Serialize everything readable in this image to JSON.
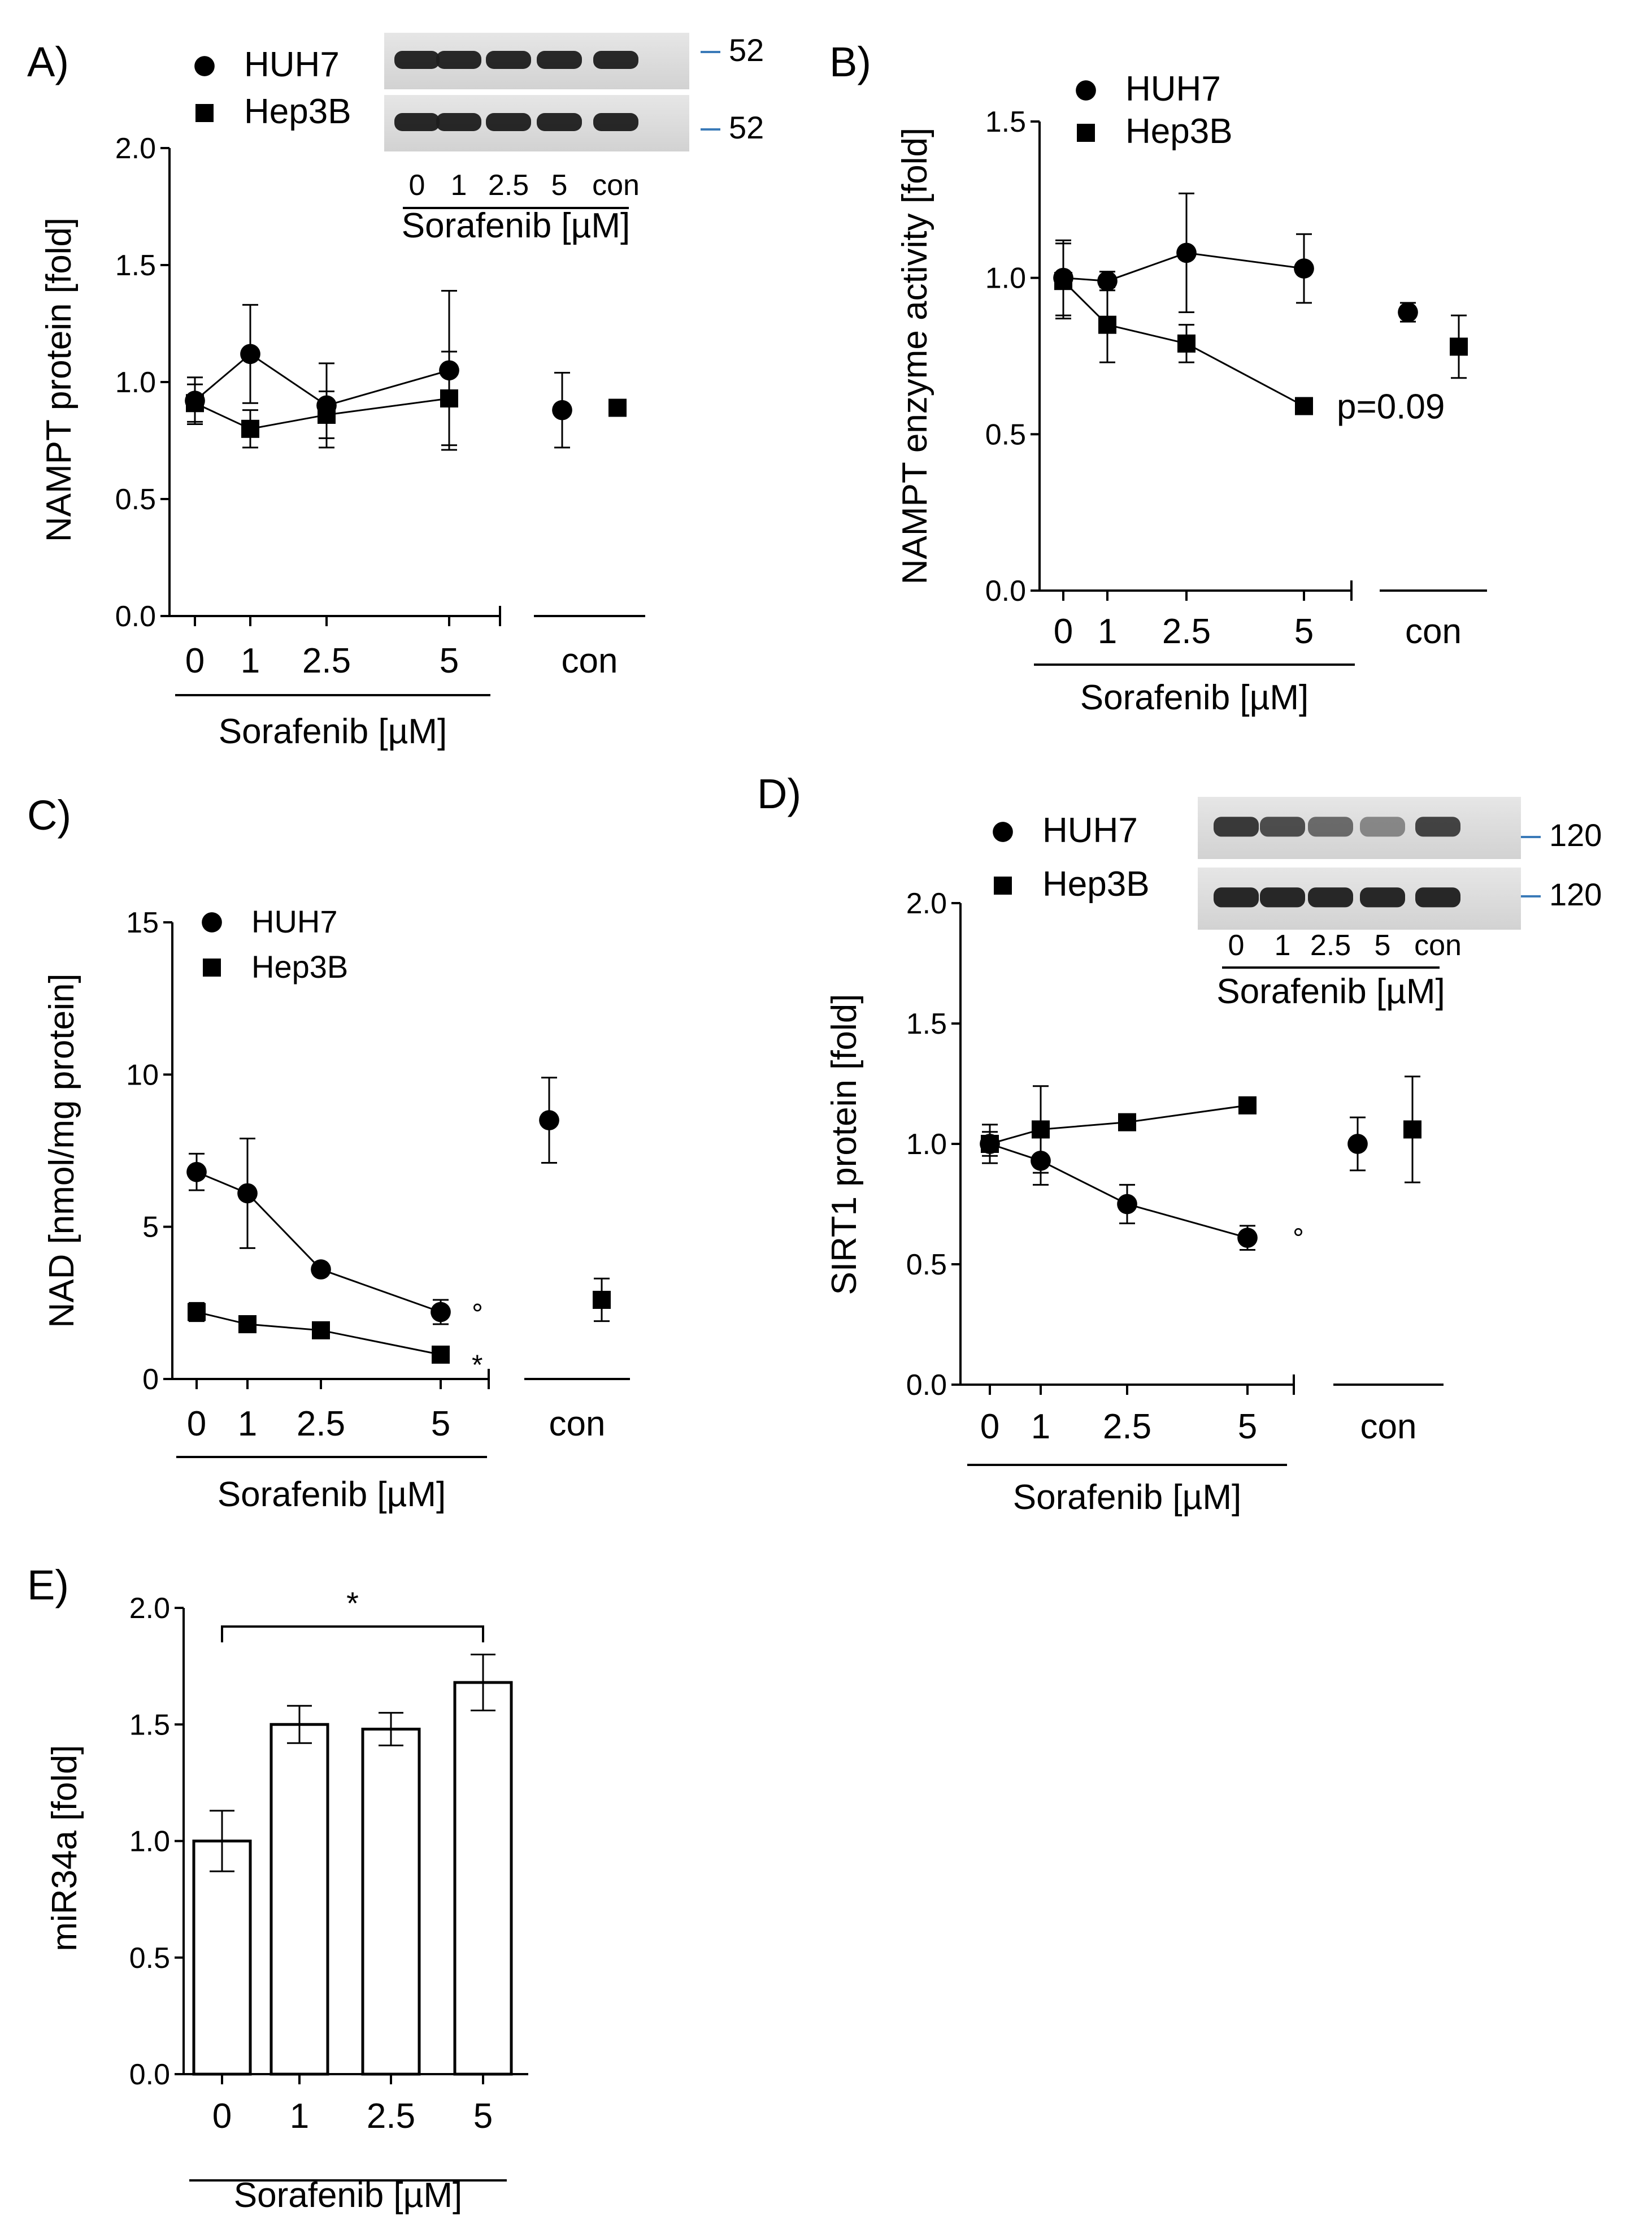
{
  "figure": {
    "x_title": "Sorafenib [µM]",
    "con_label": "con",
    "x_ticks": [
      "0",
      "1",
      "2.5",
      "5"
    ],
    "x_values": [
      0,
      1,
      2.5,
      5
    ],
    "legend": {
      "huh7": "HUH7",
      "hep3b": "Hep3B"
    }
  },
  "chart_data": [
    {
      "panel": "A)",
      "type": "line",
      "ylabel": "NAMPT protein [fold]",
      "xlabel": "Sorafenib [µM]",
      "ylim": [
        0,
        2
      ],
      "yticks": [
        "0.0",
        "0.5",
        "1.0",
        "1.5",
        "2.0"
      ],
      "series": [
        {
          "name": "HUH7",
          "marker": "circle",
          "values": [
            0.92,
            1.12,
            0.9,
            1.05
          ],
          "err": [
            0.1,
            0.21,
            0.18,
            0.34
          ],
          "con": 0.88,
          "con_err": 0.16
        },
        {
          "name": "Hep3B",
          "marker": "square",
          "values": [
            0.91,
            0.8,
            0.86,
            0.93
          ],
          "err": [
            0.08,
            0.08,
            0.1,
            0.2
          ],
          "con": 0.89,
          "con_err": 0.02
        }
      ],
      "blot": {
        "rows": 2,
        "lanes": [
          "0",
          "1",
          "2.5",
          "5",
          "con"
        ],
        "markers": [
          "52",
          "52"
        ],
        "caption": "Sorafenib [µM]"
      },
      "annotations": []
    },
    {
      "panel": "B)",
      "type": "line",
      "ylabel": "NAMPT enzyme activity [fold]",
      "xlabel": "Sorafenib [µM]",
      "ylim": [
        0,
        1.5
      ],
      "yticks": [
        "0.0",
        "0.5",
        "1.0",
        "1.5"
      ],
      "series": [
        {
          "name": "HUH7",
          "marker": "circle",
          "values": [
            1.0,
            0.99,
            1.08,
            1.03
          ],
          "err": [
            0.12,
            0.03,
            0.19,
            0.11
          ],
          "con": 0.89,
          "con_err": 0.03
        },
        {
          "name": "Hep3B",
          "marker": "square",
          "values": [
            0.99,
            0.85,
            0.79,
            0.59
          ],
          "err": [
            0.12,
            0.12,
            0.06,
            0.02
          ],
          "con": 0.78,
          "con_err": 0.1
        }
      ],
      "annotations": [
        {
          "text": "p=0.09",
          "series": "Hep3B",
          "at": 5
        }
      ]
    },
    {
      "panel": "C)",
      "type": "line",
      "ylabel": "NAD [nmol/mg protein]",
      "xlabel": "Sorafenib [µM]",
      "ylim": [
        0,
        15
      ],
      "yticks": [
        "0",
        "5",
        "10",
        "15"
      ],
      "series": [
        {
          "name": "HUH7",
          "marker": "circle",
          "values": [
            6.8,
            6.1,
            3.6,
            2.2
          ],
          "err": [
            0.6,
            1.8,
            0.1,
            0.4
          ],
          "con": 8.5,
          "con_err": 1.4
        },
        {
          "name": "Hep3B",
          "marker": "square",
          "values": [
            2.2,
            1.8,
            1.6,
            0.8
          ],
          "err": [
            0.3,
            0.1,
            0.1,
            0.05
          ],
          "con": 2.6,
          "con_err": 0.7
        }
      ],
      "annotations": [
        {
          "text": "°",
          "series": "HUH7",
          "at": 5
        },
        {
          "text": "*",
          "series": "Hep3B",
          "at": 5
        }
      ]
    },
    {
      "panel": "D)",
      "type": "line",
      "ylabel": "SIRT1 protein [fold]",
      "xlabel": "Sorafenib [µM]",
      "ylim": [
        0,
        2
      ],
      "yticks": [
        "0.0",
        "0.5",
        "1.0",
        "1.5",
        "2.0"
      ],
      "series": [
        {
          "name": "HUH7",
          "marker": "circle",
          "values": [
            1.0,
            0.93,
            0.75,
            0.61
          ],
          "err": [
            0.08,
            0.1,
            0.08,
            0.05
          ],
          "con": 1.0,
          "con_err": 0.11
        },
        {
          "name": "Hep3B",
          "marker": "square",
          "values": [
            1.0,
            1.06,
            1.09,
            1.16
          ],
          "err": [
            0.05,
            0.18,
            0.02,
            0.02
          ],
          "con": 1.06,
          "con_err": 0.22
        }
      ],
      "blot": {
        "rows": 2,
        "lanes": [
          "0",
          "1",
          "2.5",
          "5",
          "con"
        ],
        "markers": [
          "120",
          "120"
        ],
        "caption": "Sorafenib [µM]"
      },
      "annotations": [
        {
          "text": "°",
          "series": "HUH7",
          "at": 5
        }
      ]
    },
    {
      "panel": "E)",
      "type": "bar",
      "ylabel": "miR34a [fold]",
      "xlabel": "Sorafenib [µM]",
      "ylim": [
        0,
        2
      ],
      "yticks": [
        "0.0",
        "0.5",
        "1.0",
        "1.5",
        "2.0"
      ],
      "categories": [
        "0",
        "1",
        "2.5",
        "5"
      ],
      "values": [
        1.0,
        1.5,
        1.48,
        1.68
      ],
      "err": [
        0.13,
        0.08,
        0.07,
        0.12
      ],
      "annotations": [
        {
          "text": "*",
          "bracket": [
            "0",
            "5"
          ]
        }
      ]
    }
  ]
}
